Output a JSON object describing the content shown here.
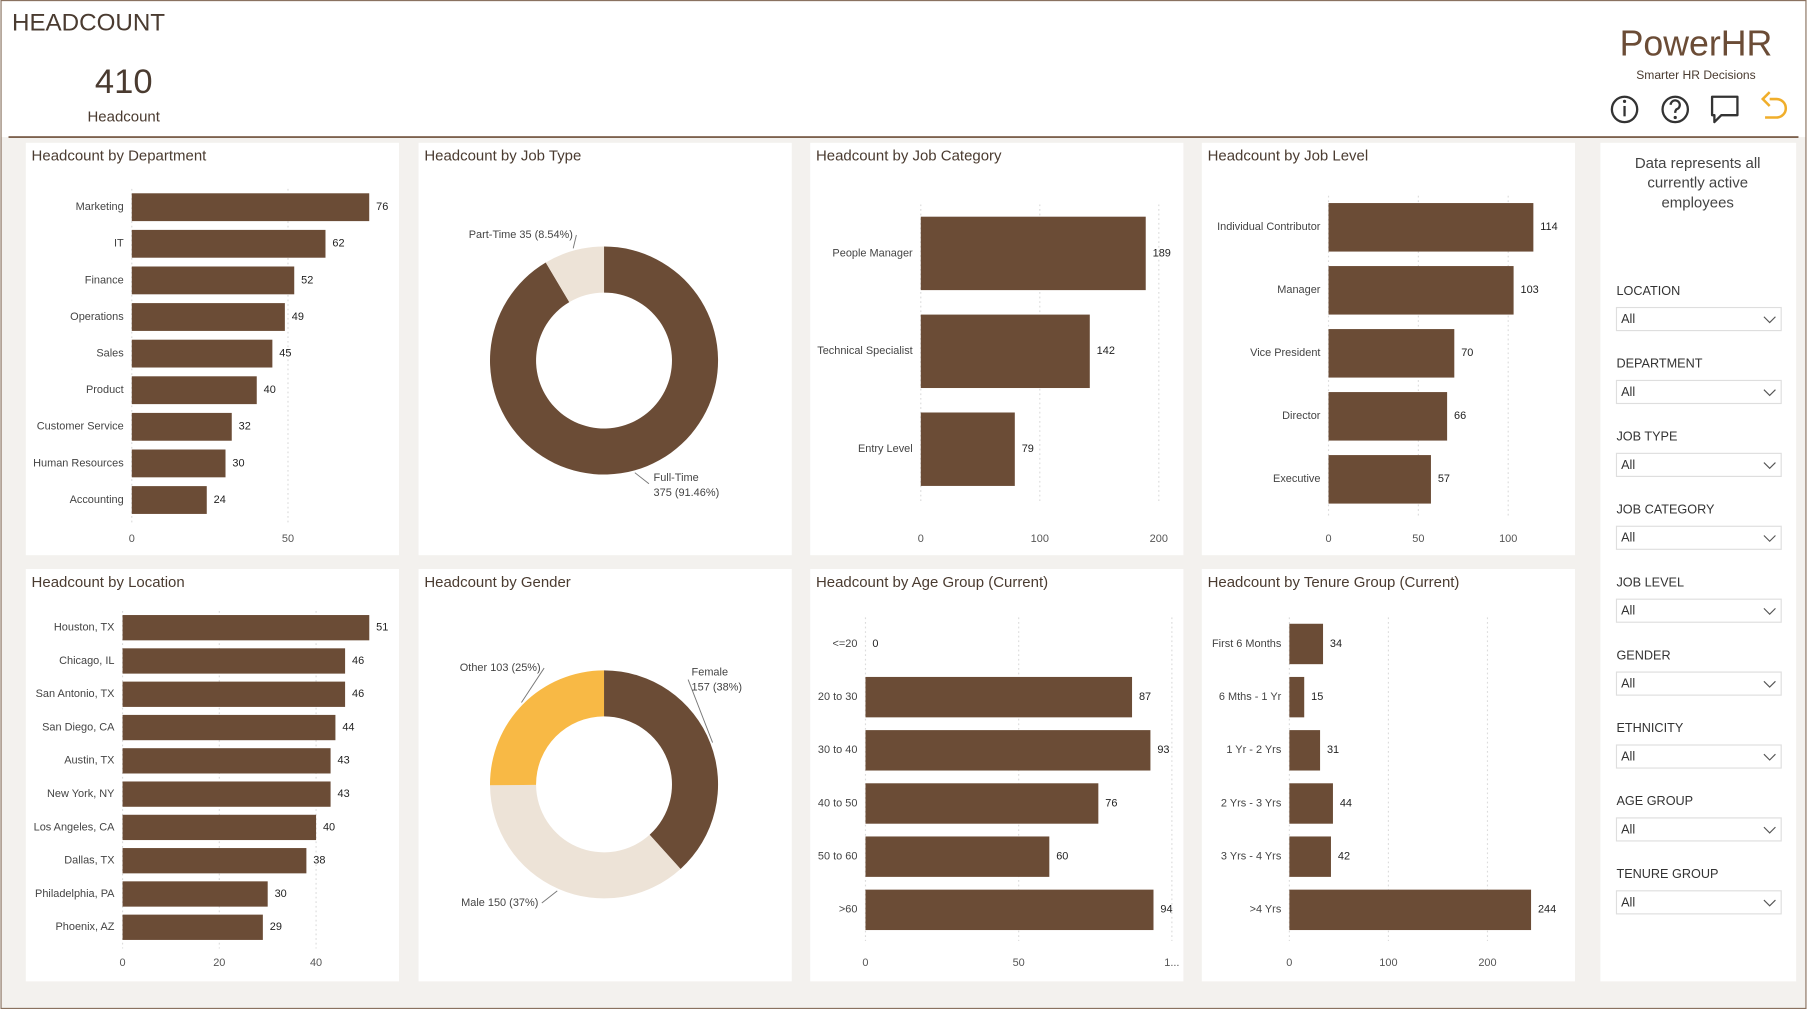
{
  "header": {
    "title": "HEADCOUNT",
    "kpi": {
      "value": 410,
      "label": "Headcount"
    },
    "brand": "PowerHR",
    "tagline": "Smarter HR Decisions"
  },
  "chart_data": [
    {
      "type": "bar",
      "orientation": "horizontal",
      "title": "Headcount by Department",
      "categories": [
        "Marketing",
        "IT",
        "Finance",
        "Operations",
        "Sales",
        "Product",
        "Customer Service",
        "Human Resources",
        "Accounting"
      ],
      "values": [
        76,
        62,
        52,
        49,
        45,
        40,
        32,
        30,
        24
      ],
      "color": "#6b4c36",
      "xlim": [
        0,
        80
      ],
      "xticks": [
        0,
        50
      ],
      "grid": true
    },
    {
      "type": "donut",
      "title": "Headcount by Job Type",
      "categories": [
        "Full-Time",
        "Part-Time"
      ],
      "values": [
        375,
        35
      ],
      "value_labels": [
        "375 (91.46%)",
        "35 (8.54%)"
      ],
      "colors": [
        "#6b4c36",
        "#ede3d7"
      ]
    },
    {
      "type": "bar",
      "orientation": "horizontal",
      "title": "Headcount by Job Category",
      "categories": [
        "People Manager",
        "Technical Specialist",
        "Entry Level"
      ],
      "values": [
        189,
        142,
        79
      ],
      "color": "#6b4c36",
      "xlim": [
        0,
        210
      ],
      "xticks": [
        0,
        100,
        200
      ],
      "grid": true
    },
    {
      "type": "bar",
      "orientation": "horizontal",
      "title": "Headcount by Job Level",
      "categories": [
        "Individual Contributor",
        "Manager",
        "Vice President",
        "Director",
        "Executive"
      ],
      "values": [
        114,
        103,
        70,
        66,
        57
      ],
      "color": "#6b4c36",
      "xlim": [
        0,
        125
      ],
      "xticks": [
        0,
        50,
        100
      ],
      "grid": true
    },
    {
      "type": "bar",
      "orientation": "horizontal",
      "title": "Headcount by Location",
      "categories": [
        "Houston, TX",
        "Chicago, IL",
        "San Antonio, TX",
        "San Diego, CA",
        "Austin, TX",
        "New York, NY",
        "Los Angeles, CA",
        "Dallas, TX",
        "Philadelphia, PA",
        "Phoenix, AZ"
      ],
      "values": [
        51,
        46,
        46,
        44,
        43,
        43,
        40,
        38,
        30,
        29
      ],
      "color": "#6b4c36",
      "xlim": [
        0,
        55
      ],
      "xticks": [
        0,
        20,
        40
      ],
      "grid": true
    },
    {
      "type": "donut",
      "title": "Headcount by Gender",
      "categories": [
        "Female",
        "Male",
        "Other"
      ],
      "values": [
        157,
        150,
        103
      ],
      "value_labels": [
        "157 (38%)",
        "150 (37%)",
        "103 (25%)"
      ],
      "colors": [
        "#6b4c36",
        "#ede3d7",
        "#f8b945"
      ]
    },
    {
      "type": "bar",
      "orientation": "horizontal",
      "title": "Headcount by Age Group (Current)",
      "categories": [
        "<=20",
        "20 to 30",
        "30 to 40",
        "40 to 50",
        "50 to 60",
        ">60"
      ],
      "values": [
        0,
        87,
        93,
        76,
        60,
        94
      ],
      "color": "#6b4c36",
      "xlim": [
        0,
        100
      ],
      "xticks": [
        0,
        50,
        {
          "value": 100,
          "label": "1..."
        }
      ],
      "grid": true
    },
    {
      "type": "bar",
      "orientation": "horizontal",
      "title": "Headcount by Tenure Group (Current)",
      "categories": [
        "First 6 Months",
        "6 Mths - 1 Yr",
        "1 Yr - 2 Yrs",
        "2 Yrs - 3 Yrs",
        "3 Yrs - 4 Yrs",
        ">4 Yrs"
      ],
      "values": [
        34,
        15,
        31,
        44,
        42,
        244
      ],
      "color": "#6b4c36",
      "xlim": [
        0,
        250
      ],
      "xticks": [
        0,
        100,
        200
      ],
      "grid": true
    }
  ],
  "filters": {
    "note": "Data represents all currently active employees",
    "items": [
      {
        "label": "LOCATION",
        "value": "All"
      },
      {
        "label": "DEPARTMENT",
        "value": "All"
      },
      {
        "label": "JOB TYPE",
        "value": "All"
      },
      {
        "label": "JOB CATEGORY",
        "value": "All"
      },
      {
        "label": "JOB LEVEL",
        "value": "All"
      },
      {
        "label": "GENDER",
        "value": "All"
      },
      {
        "label": "ETHNICITY",
        "value": "All"
      },
      {
        "label": "AGE GROUP",
        "value": "All"
      },
      {
        "label": "TENURE GROUP",
        "value": "All"
      }
    ]
  }
}
